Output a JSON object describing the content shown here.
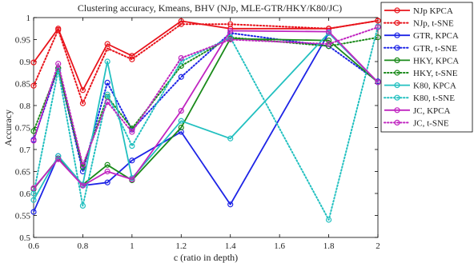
{
  "chart_data": {
    "type": "line",
    "title": "Clustering accuracy, Kmeans, BHV (NJp, MLE-GTR/HKY/K80/JC)",
    "xlabel": "c (ratio in depth)",
    "ylabel": "Accuracy",
    "x": [
      0.6,
      0.7,
      0.8,
      0.9,
      1.0,
      1.2,
      1.4,
      1.8,
      2.0
    ],
    "xlim": [
      0.6,
      2.0
    ],
    "ylim": [
      0.5,
      1.0
    ],
    "xticks": [
      "0.6",
      "0.8",
      "1",
      "1.2",
      "1.4",
      "1.6",
      "1.8",
      "2"
    ],
    "yticks": [
      "0.5",
      "0.55",
      "0.6",
      "0.65",
      "0.7",
      "0.75",
      "0.8",
      "0.85",
      "0.9",
      "0.95",
      "1"
    ],
    "grid": false,
    "legend_position": "right-outside",
    "series": [
      {
        "name": "NJp KPCA",
        "color": "#e8141c",
        "dash": "solid",
        "values": [
          0.898,
          0.975,
          0.835,
          0.94,
          0.913,
          0.992,
          0.975,
          0.975,
          0.993
        ]
      },
      {
        "name": "NJp, t-SNE",
        "color": "#e8141c",
        "dash": "dotted",
        "values": [
          0.845,
          0.972,
          0.805,
          0.93,
          0.905,
          0.985,
          0.985,
          0.975,
          0.993
        ]
      },
      {
        "name": "GTR, KPCA",
        "color": "#1d24e6",
        "dash": "solid",
        "values": [
          0.558,
          0.685,
          0.618,
          0.625,
          0.675,
          0.74,
          0.575,
          0.965,
          0.853
        ]
      },
      {
        "name": "GTR, t-SNE",
        "color": "#1d24e6",
        "dash": "dotted",
        "values": [
          0.722,
          0.885,
          0.65,
          0.852,
          0.745,
          0.865,
          0.965,
          0.935,
          0.855
        ]
      },
      {
        "name": "HKY, KPCA",
        "color": "#1a8a1a",
        "dash": "solid",
        "values": [
          0.61,
          0.68,
          0.62,
          0.665,
          0.63,
          0.75,
          0.952,
          0.948,
          0.853
        ]
      },
      {
        "name": "HKY, t-SNE",
        "color": "#1a8a1a",
        "dash": "dotted",
        "values": [
          0.742,
          0.885,
          0.66,
          0.82,
          0.748,
          0.89,
          0.955,
          0.935,
          0.955
        ]
      },
      {
        "name": "K80, KPCA",
        "color": "#22c0c0",
        "dash": "solid",
        "values": [
          0.585,
          0.685,
          0.62,
          0.9,
          0.635,
          0.765,
          0.725,
          0.965,
          0.853
        ]
      },
      {
        "name": "K80, t-SNE",
        "color": "#22c0c0",
        "dash": "dotted",
        "values": [
          0.6,
          0.88,
          0.572,
          0.825,
          0.708,
          0.9,
          0.955,
          0.54,
          0.98
        ]
      },
      {
        "name": "JC, KPCA",
        "color": "#c024c0",
        "dash": "solid",
        "values": [
          0.612,
          0.678,
          0.618,
          0.65,
          0.632,
          0.788,
          0.97,
          0.968,
          0.853
        ]
      },
      {
        "name": "JC, t-SNE",
        "color": "#c024c0",
        "dash": "dotted",
        "values": [
          0.72,
          0.895,
          0.665,
          0.808,
          0.74,
          0.908,
          0.95,
          0.94,
          0.978
        ]
      }
    ]
  }
}
